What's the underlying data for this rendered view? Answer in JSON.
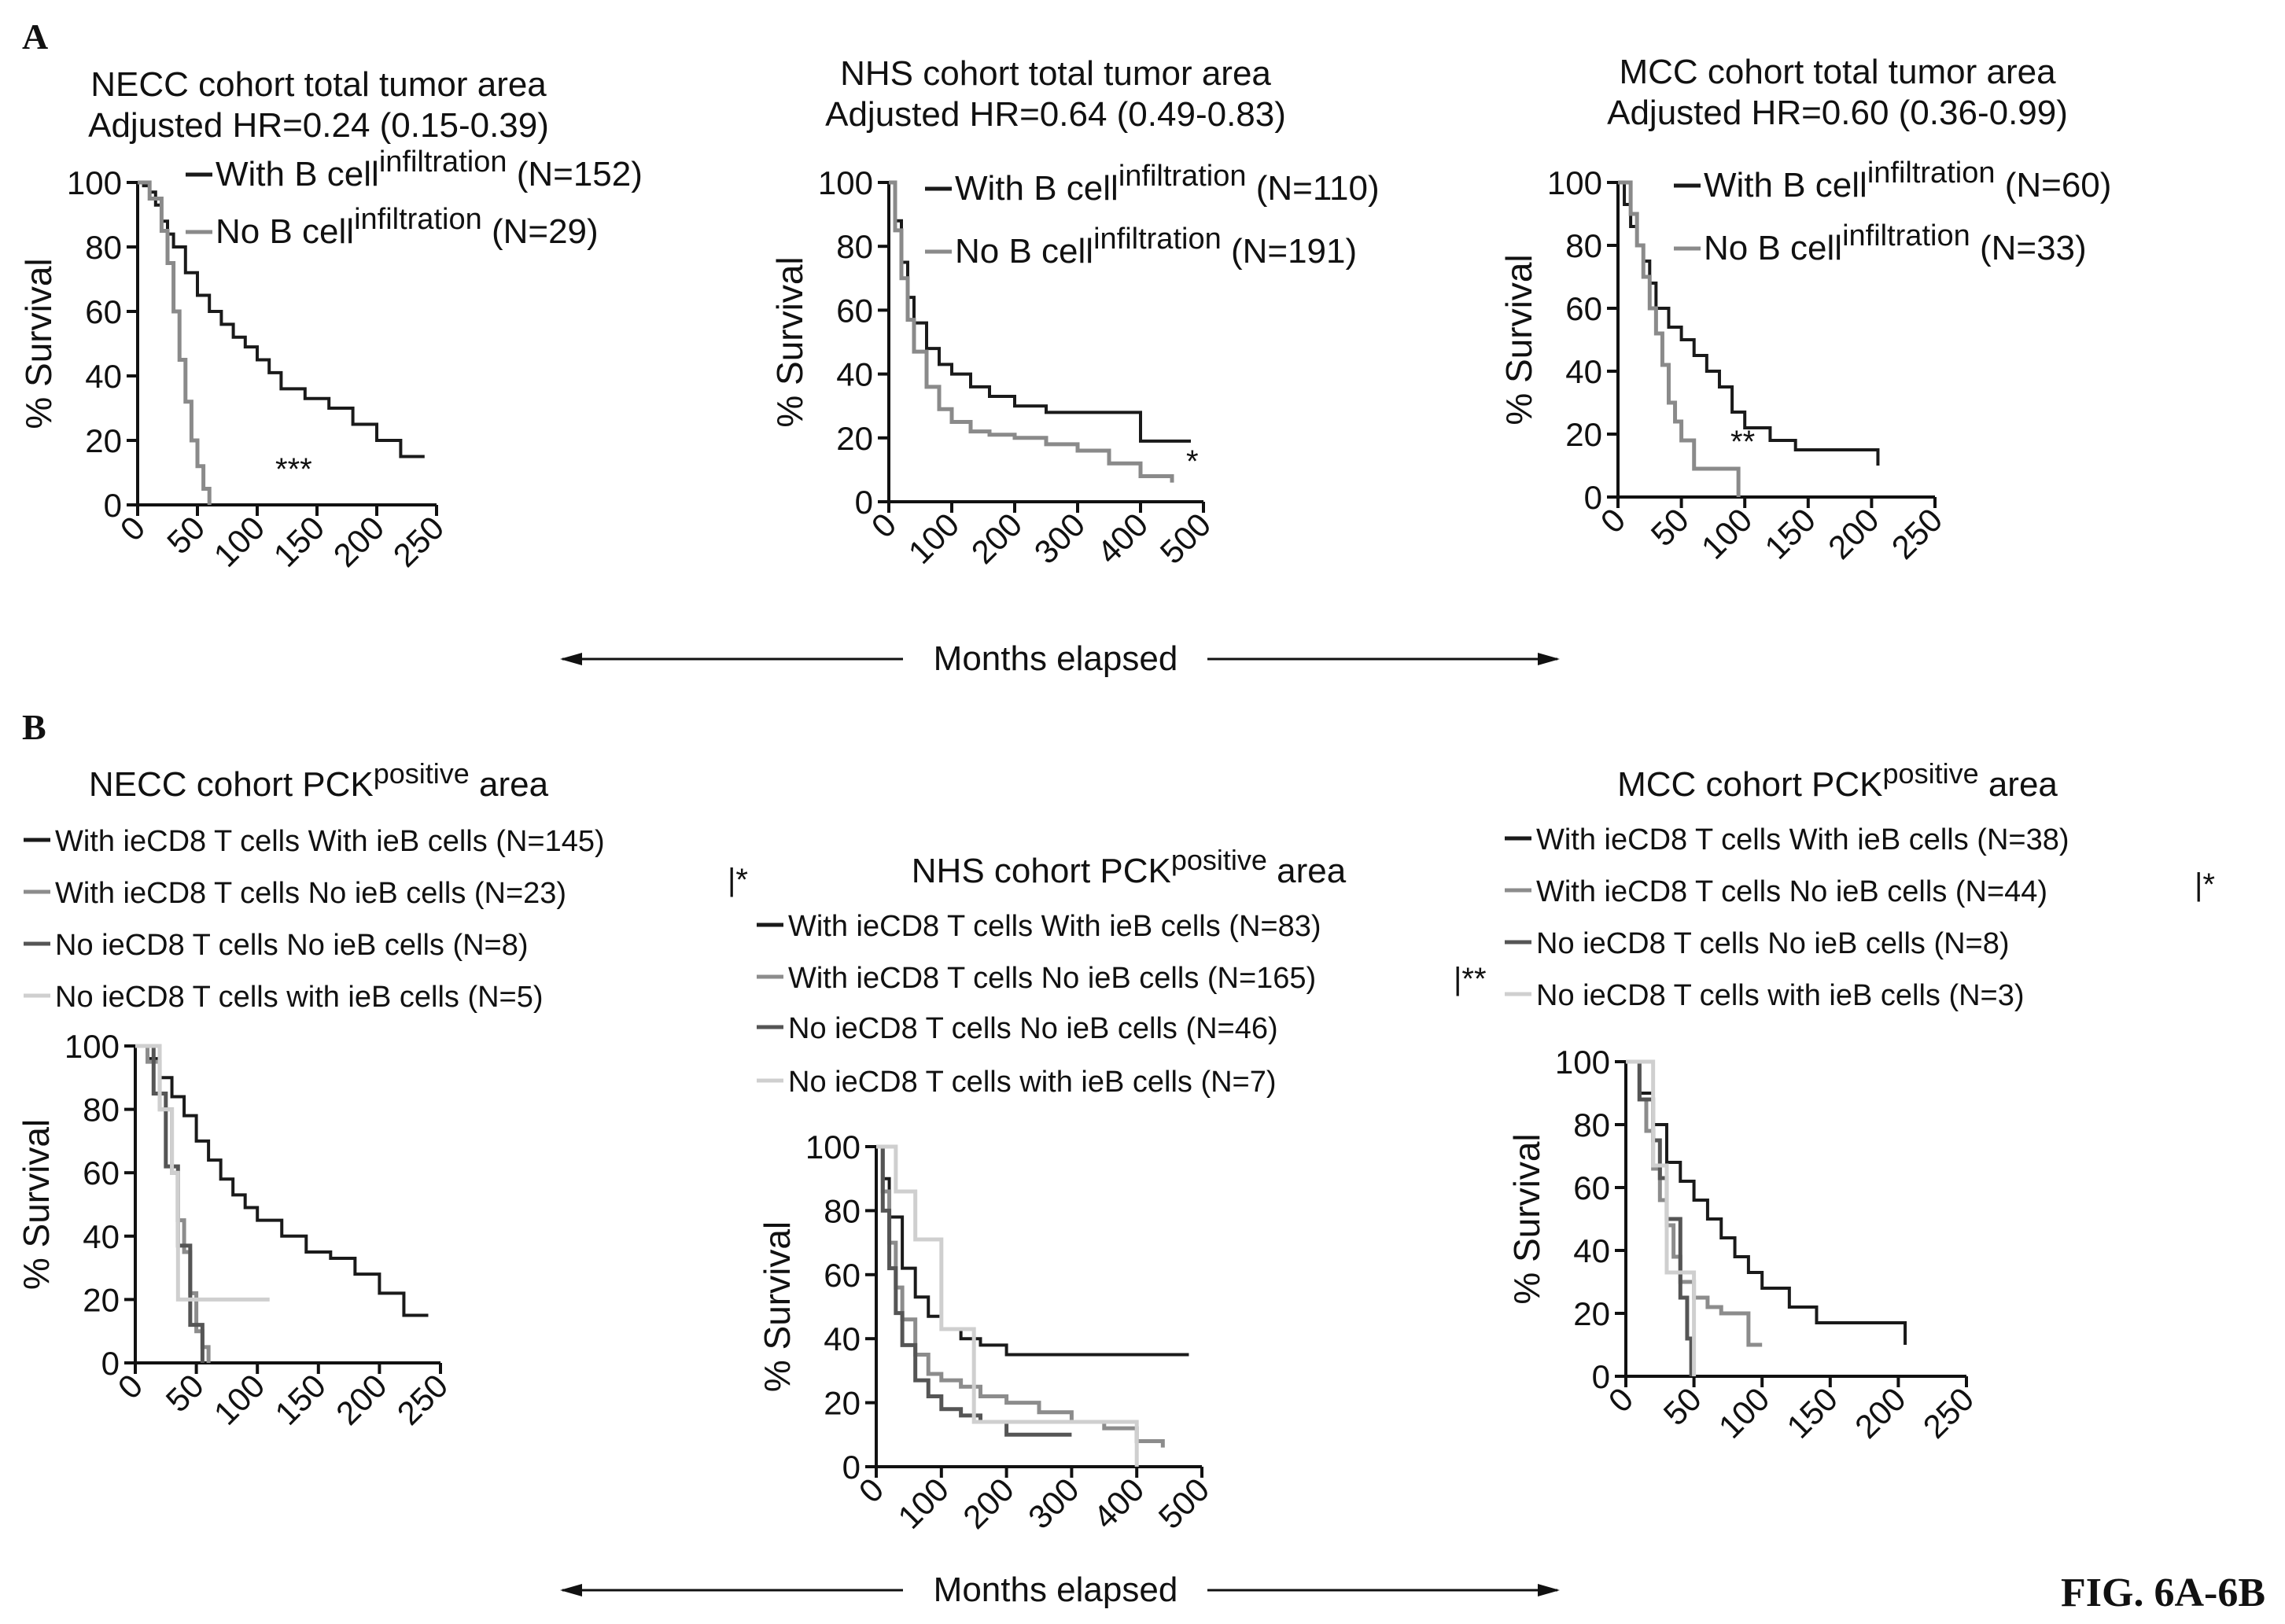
{
  "figure": {
    "label_a": "A",
    "label_b": "B",
    "fig_label": "FIG. 6A-6B",
    "months_label_a": "Months elapsed",
    "months_label_b": "Months elapsed"
  },
  "colors": {
    "with_b": "#1a1a1a",
    "no_b": "#8a8a8a",
    "c1": "#1a1a1a",
    "c2": "#8c8c8c",
    "c3": "#555555",
    "c4": "#cfcfcf"
  },
  "chart_data": [
    {
      "id": "a1",
      "type": "line",
      "panel": "A",
      "title": "NECC cohort total tumor area",
      "subtitle": "Adjusted HR=0.24 (0.15-0.39)",
      "ylabel": "% Survival",
      "xlabel": "",
      "xlim": [
        0,
        250
      ],
      "ylim": [
        0,
        100
      ],
      "xticks": [
        0,
        50,
        100,
        150,
        200,
        250
      ],
      "yticks": [
        0,
        20,
        40,
        60,
        80,
        100
      ],
      "annotation": "***",
      "series": [
        {
          "name": "With B cell",
          "sup": "infiltration",
          "n": "(N=152)",
          "x": [
            0,
            5,
            10,
            15,
            20,
            25,
            30,
            40,
            50,
            60,
            70,
            80,
            90,
            100,
            110,
            120,
            140,
            160,
            180,
            200,
            220,
            240
          ],
          "y": [
            100,
            99,
            97,
            93,
            88,
            84,
            80,
            72,
            65,
            60,
            56,
            52,
            49,
            45,
            41,
            36,
            33,
            30,
            25,
            20,
            15,
            15
          ]
        },
        {
          "name": "No B cell",
          "sup": "infiltration",
          "n": "(N=29)",
          "x": [
            0,
            10,
            20,
            25,
            30,
            35,
            40,
            45,
            50,
            55,
            60
          ],
          "y": [
            100,
            95,
            85,
            75,
            60,
            45,
            32,
            20,
            12,
            5,
            0
          ]
        }
      ]
    },
    {
      "id": "a2",
      "type": "line",
      "panel": "A",
      "title": "NHS cohort total tumor area",
      "subtitle": "Adjusted HR=0.64 (0.49-0.83)",
      "ylabel": "% Survival",
      "xlabel": "",
      "xlim": [
        0,
        500
      ],
      "ylim": [
        0,
        100
      ],
      "xticks": [
        0,
        100,
        200,
        300,
        400,
        500
      ],
      "yticks": [
        0,
        20,
        40,
        60,
        80,
        100
      ],
      "annotation": "*",
      "series": [
        {
          "name": "With B cell",
          "sup": "infiltration",
          "n": "(N=110)",
          "x": [
            0,
            10,
            20,
            30,
            40,
            60,
            80,
            100,
            130,
            160,
            200,
            250,
            300,
            350,
            400,
            450,
            480
          ],
          "y": [
            100,
            88,
            75,
            64,
            56,
            48,
            43,
            40,
            36,
            33,
            30,
            28,
            28,
            28,
            19,
            19,
            19
          ]
        },
        {
          "name": "No B cell",
          "sup": "infiltration",
          "n": "(N=191)",
          "x": [
            0,
            10,
            20,
            30,
            40,
            60,
            80,
            100,
            130,
            160,
            200,
            250,
            300,
            350,
            400,
            450
          ],
          "y": [
            100,
            85,
            70,
            57,
            47,
            36,
            29,
            25,
            22,
            21,
            20,
            18,
            16,
            12,
            8,
            6
          ]
        }
      ]
    },
    {
      "id": "a3",
      "type": "line",
      "panel": "A",
      "title": "MCC cohort total tumor area",
      "subtitle": "Adjusted HR=0.60 (0.36-0.99)",
      "ylabel": "% Survival",
      "xlabel": "",
      "xlim": [
        0,
        250
      ],
      "ylim": [
        0,
        100
      ],
      "xticks": [
        0,
        50,
        100,
        150,
        200,
        250
      ],
      "yticks": [
        0,
        20,
        40,
        60,
        80,
        100
      ],
      "annotation": "**",
      "series": [
        {
          "name": "With B cell",
          "sup": "infiltration",
          "n": "(N=60)",
          "x": [
            0,
            5,
            10,
            15,
            20,
            25,
            30,
            40,
            50,
            60,
            70,
            80,
            90,
            100,
            120,
            140,
            160,
            180,
            205
          ],
          "y": [
            100,
            93,
            86,
            80,
            75,
            68,
            60,
            54,
            50,
            45,
            40,
            35,
            27,
            22,
            18,
            15,
            15,
            15,
            10
          ]
        },
        {
          "name": "No B cell",
          "sup": "infiltration",
          "n": "(N=33)",
          "x": [
            0,
            10,
            15,
            20,
            25,
            30,
            35,
            40,
            45,
            50,
            60,
            70,
            80,
            90,
            95
          ],
          "y": [
            100,
            90,
            80,
            70,
            60,
            52,
            42,
            30,
            24,
            18,
            9,
            9,
            9,
            9,
            0
          ]
        }
      ]
    },
    {
      "id": "b1",
      "type": "line",
      "panel": "B",
      "title": "NECC cohort PCK",
      "title_sup": "positive",
      "title_end": " area",
      "ylabel": "% Survival",
      "xlabel": "",
      "xlim": [
        0,
        250
      ],
      "ylim": [
        0,
        100
      ],
      "xticks": [
        0,
        50,
        100,
        150,
        200,
        250
      ],
      "yticks": [
        0,
        20,
        40,
        60,
        80,
        100
      ],
      "annotation": "|*",
      "series": [
        {
          "name": "With ieCD8 T cells With ieB cells (N=145)",
          "x": [
            0,
            10,
            20,
            30,
            40,
            50,
            60,
            70,
            80,
            90,
            100,
            120,
            140,
            160,
            180,
            200,
            220,
            240
          ],
          "y": [
            100,
            96,
            90,
            84,
            78,
            70,
            64,
            58,
            53,
            49,
            45,
            40,
            35,
            33,
            28,
            22,
            15,
            15
          ]
        },
        {
          "name": "With ieCD8 T cells No ieB cells (N=23)",
          "x": [
            0,
            10,
            20,
            30,
            35,
            40,
            45,
            50,
            55,
            60
          ],
          "y": [
            100,
            95,
            80,
            60,
            45,
            35,
            22,
            10,
            5,
            0
          ]
        },
        {
          "name": "No ieCD8 T cells No ieB cells (N=8)",
          "x": [
            0,
            15,
            25,
            35,
            45,
            55
          ],
          "y": [
            100,
            85,
            62,
            37,
            12,
            0
          ]
        },
        {
          "name": "No ieCD8 T cells with ieB cells (N=5)",
          "x": [
            0,
            20,
            30,
            35,
            110
          ],
          "y": [
            100,
            80,
            60,
            20,
            20
          ]
        }
      ]
    },
    {
      "id": "b2",
      "type": "line",
      "panel": "B",
      "title": "NHS cohort PCK",
      "title_sup": "positive",
      "title_end": " area",
      "ylabel": "% Survival",
      "xlabel": "",
      "xlim": [
        0,
        500
      ],
      "ylim": [
        0,
        100
      ],
      "xticks": [
        0,
        100,
        200,
        300,
        400,
        500
      ],
      "yticks": [
        0,
        20,
        40,
        60,
        80,
        100
      ],
      "annotation": "|**",
      "series": [
        {
          "name": "With ieCD8 T cells With ieB cells (N=83)",
          "x": [
            0,
            10,
            20,
            40,
            60,
            80,
            100,
            130,
            160,
            200,
            300,
            400,
            480
          ],
          "y": [
            100,
            90,
            78,
            62,
            53,
            47,
            43,
            40,
            38,
            35,
            35,
            35,
            35
          ]
        },
        {
          "name": "With ieCD8 T cells No ieB cells (N=165)",
          "x": [
            0,
            10,
            20,
            30,
            40,
            60,
            80,
            100,
            130,
            160,
            200,
            250,
            300,
            350,
            400,
            440
          ],
          "y": [
            100,
            86,
            70,
            56,
            46,
            35,
            29,
            27,
            25,
            22,
            20,
            17,
            14,
            12,
            8,
            6
          ]
        },
        {
          "name": "No ieCD8 T cells No ieB cells (N=46)",
          "x": [
            0,
            10,
            20,
            30,
            40,
            60,
            80,
            100,
            130,
            160,
            200,
            250,
            300
          ],
          "y": [
            100,
            80,
            62,
            48,
            38,
            27,
            22,
            18,
            16,
            14,
            10,
            10,
            10
          ]
        },
        {
          "name": "No ieCD8 T cells with ieB cells (N=7)",
          "x": [
            0,
            30,
            60,
            100,
            150,
            300,
            380,
            400
          ],
          "y": [
            100,
            86,
            71,
            43,
            14,
            14,
            14,
            0
          ]
        }
      ]
    },
    {
      "id": "b3",
      "type": "line",
      "panel": "B",
      "title": "MCC cohort PCK",
      "title_sup": "positive",
      "title_end": " area",
      "ylabel": "% Survival",
      "xlabel": "",
      "xlim": [
        0,
        250
      ],
      "ylim": [
        0,
        100
      ],
      "xticks": [
        0,
        50,
        100,
        150,
        200,
        250
      ],
      "yticks": [
        0,
        20,
        40,
        60,
        80,
        100
      ],
      "annotation": "|*",
      "series": [
        {
          "name": "With ieCD8 T cells With ieB cells (N=38)",
          "x": [
            0,
            10,
            20,
            30,
            40,
            50,
            60,
            70,
            80,
            90,
            100,
            120,
            140,
            160,
            180,
            205
          ],
          "y": [
            100,
            90,
            80,
            68,
            62,
            56,
            50,
            44,
            38,
            33,
            28,
            22,
            17,
            17,
            17,
            10
          ]
        },
        {
          "name": "With ieCD8 T cells No ieB cells (N=44)",
          "x": [
            0,
            10,
            15,
            20,
            25,
            30,
            35,
            40,
            50,
            60,
            70,
            80,
            90,
            100
          ],
          "y": [
            100,
            88,
            78,
            66,
            56,
            48,
            38,
            30,
            25,
            22,
            20,
            20,
            10,
            10
          ]
        },
        {
          "name": "No ieCD8 T cells No ieB cells (N=8)",
          "x": [
            0,
            10,
            20,
            25,
            30,
            40,
            45,
            48
          ],
          "y": [
            100,
            88,
            75,
            63,
            50,
            25,
            12,
            0
          ]
        },
        {
          "name": "No ieCD8 T cells with ieB cells (N=3)",
          "x": [
            0,
            10,
            20,
            30,
            40,
            50
          ],
          "y": [
            100,
            100,
            67,
            33,
            33,
            0
          ]
        }
      ]
    }
  ]
}
